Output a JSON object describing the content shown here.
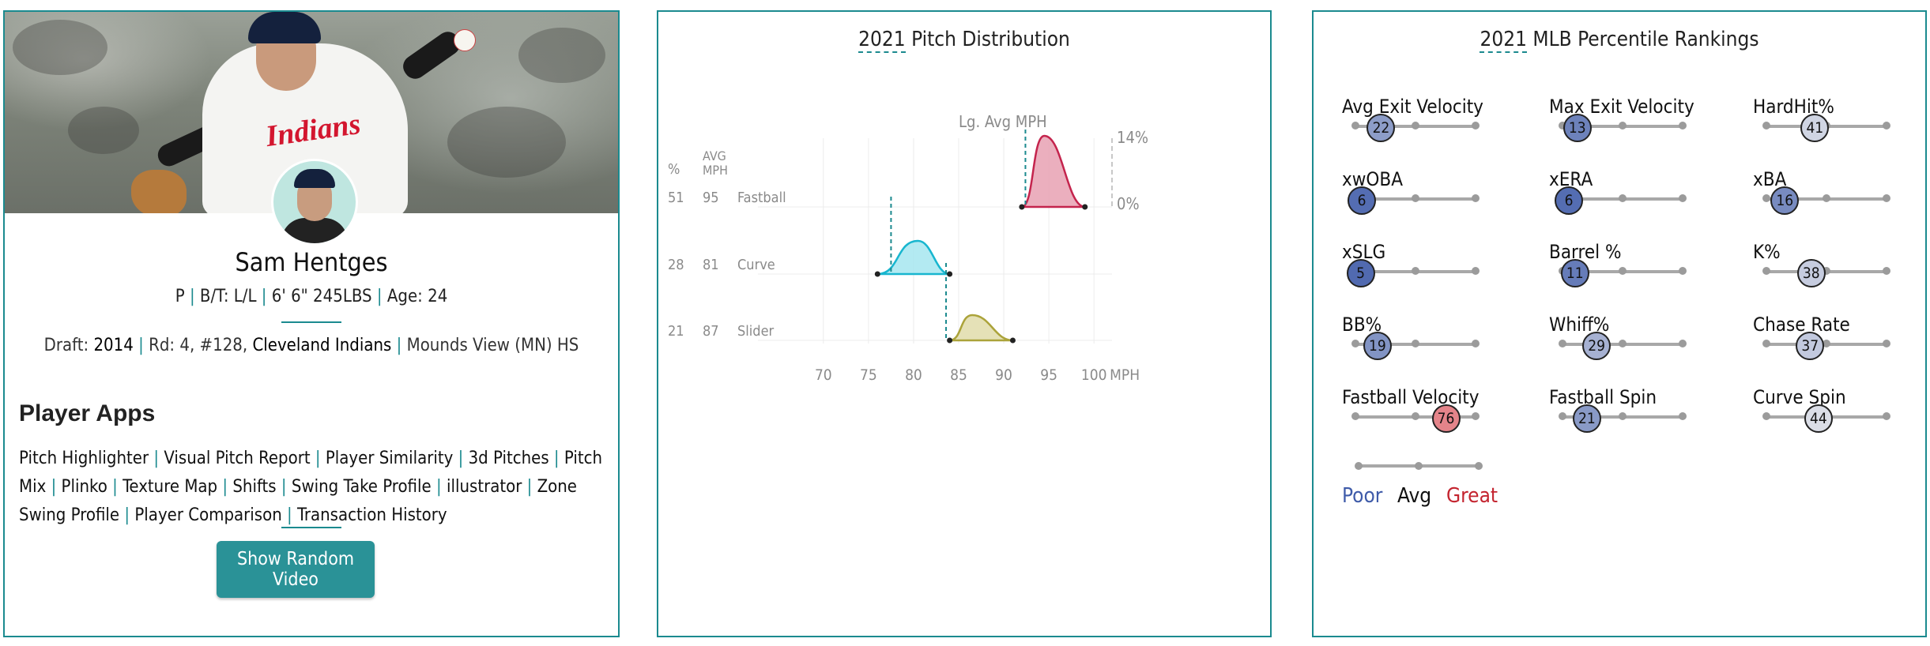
{
  "player": {
    "name": "Sam Hentges",
    "pos": "P",
    "bt": "B/T: L/L",
    "size": "6' 6\" 245LBS",
    "age": "Age: 24",
    "draft_label": "Draft:",
    "draft_year": "2014",
    "draft_round": "Rd: 4, #128,",
    "draft_team": "Cleveland Indians",
    "draft_school": "Mounds View (MN) HS",
    "hero_wordmark": "Indians",
    "apps_title": "Player Apps",
    "apps": [
      "Pitch Highlighter",
      "Visual Pitch Report",
      "Player Similarity",
      "3d Pitches",
      "Pitch Mix",
      "Plinko",
      "Texture Map",
      "Shifts",
      "Swing Take Profile",
      "illustrator",
      "Zone Swing Profile",
      "Player Comparison",
      "Transaction History"
    ],
    "random_video_label": "Show Random Video"
  },
  "pitch_dist": {
    "year": "2021",
    "title": "Pitch Distribution",
    "lg_avg_label": "Lg. Avg MPH",
    "col_pct": "%",
    "col_avg": "AVG",
    "col_mph": "MPH",
    "pct_max_label": "14%",
    "pct_zero_label": "0%",
    "x_unit": "MPH",
    "chart_data": {
      "type": "area",
      "title": "2021 Pitch Distribution",
      "xlabel": "MPH",
      "x_ticks": [
        70,
        75,
        80,
        85,
        90,
        95,
        100
      ],
      "xlim": [
        68,
        102
      ],
      "ylim": [
        0,
        14
      ],
      "series": [
        {
          "name": "Fastball",
          "usage_pct": 51,
          "avg_mph": 95,
          "range": [
            92,
            99
          ],
          "peak_x": 94.5,
          "lg_avg": 92.4,
          "color": "#e8a1b3",
          "stroke": "#c4244d"
        },
        {
          "name": "Curve",
          "usage_pct": 28,
          "avg_mph": 81,
          "range": [
            76,
            84
          ],
          "peak_x": 80.5,
          "lg_avg": 77.5,
          "color": "#a6e6f0",
          "stroke": "#18b6cf"
        },
        {
          "name": "Slider",
          "usage_pct": 21,
          "avg_mph": 87,
          "range": [
            84,
            91
          ],
          "peak_x": 86.5,
          "lg_avg": 83.6,
          "color": "#e0dcaa",
          "stroke": "#aba33a"
        }
      ]
    }
  },
  "percentiles": {
    "year": "2021",
    "title": "MLB Percentile Rankings",
    "poor_color": "#3f5ba9",
    "avg_color": "#f0f0f0",
    "great_color": "#d8212c",
    "legend": {
      "poor": "Poor",
      "avg": "Avg",
      "great": "Great"
    },
    "metrics": [
      {
        "label": "Avg Exit Velocity",
        "value": 22
      },
      {
        "label": "Max Exit Velocity",
        "value": 13
      },
      {
        "label": "HardHit%",
        "value": 41
      },
      {
        "label": "xwOBA",
        "value": 6
      },
      {
        "label": "xERA",
        "value": 6
      },
      {
        "label": "xBA",
        "value": 16
      },
      {
        "label": "xSLG",
        "value": 5
      },
      {
        "label": "Barrel %",
        "value": 11
      },
      {
        "label": "K%",
        "value": 38
      },
      {
        "label": "BB%",
        "value": 19
      },
      {
        "label": "Whiff%",
        "value": 29
      },
      {
        "label": "Chase Rate",
        "value": 37
      },
      {
        "label": "Fastball Velocity",
        "value": 76
      },
      {
        "label": "Fastball Spin",
        "value": 21
      },
      {
        "label": "Curve Spin",
        "value": 44
      }
    ]
  }
}
